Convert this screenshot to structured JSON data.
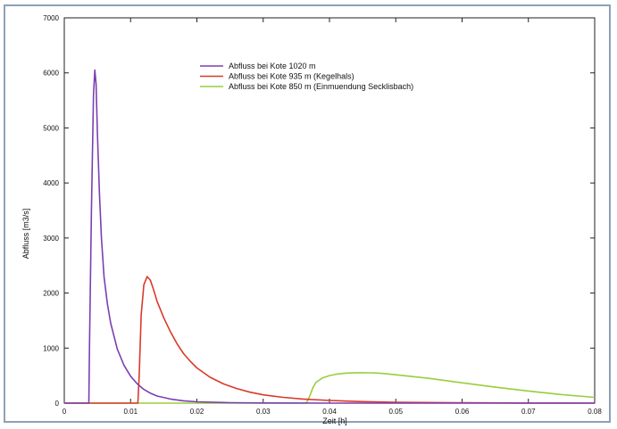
{
  "chart_data": {
    "type": "line",
    "title": "",
    "xlabel": "Zeit [h]",
    "ylabel": "Abfluss [m3/s]",
    "xlim": [
      0,
      0.08
    ],
    "ylim": [
      0,
      7000
    ],
    "xticks": [
      "0",
      "0.01",
      "0.02",
      "0.03",
      "0.04",
      "0.05",
      "0.06",
      "0.07",
      "0.08"
    ],
    "xtick_values": [
      0,
      0.01,
      0.02,
      0.03,
      0.04,
      0.05,
      0.06,
      0.07,
      0.08
    ],
    "yticks": [
      "0",
      "1000",
      "2000",
      "3000",
      "4000",
      "5000",
      "6000",
      "7000"
    ],
    "ytick_values": [
      0,
      1000,
      2000,
      3000,
      4000,
      5000,
      6000,
      7000
    ],
    "grid": false,
    "legend_position": "top-center",
    "series": [
      {
        "name": "Abfluss bei Kote 1020 m",
        "color": "#7b3fb0",
        "x": [
          0.0,
          0.0037,
          0.0038,
          0.0041,
          0.0044,
          0.0046,
          0.0048,
          0.005,
          0.0053,
          0.0056,
          0.006,
          0.0065,
          0.007,
          0.008,
          0.009,
          0.01,
          0.011,
          0.012,
          0.013,
          0.014,
          0.016,
          0.018,
          0.02,
          0.025,
          0.03,
          0.04,
          0.08
        ],
        "y": [
          0,
          0,
          1000,
          3500,
          5600,
          6050,
          5800,
          4900,
          3800,
          3000,
          2300,
          1800,
          1450,
          980,
          690,
          490,
          350,
          250,
          180,
          130,
          75,
          42,
          25,
          8,
          3,
          0,
          0
        ]
      },
      {
        "name": "Abfluss bei Kote 935 m (Kegelhals)",
        "color": "#d93a2b",
        "x": [
          0.0,
          0.0111,
          0.0113,
          0.0116,
          0.012,
          0.0125,
          0.013,
          0.0135,
          0.014,
          0.015,
          0.016,
          0.017,
          0.018,
          0.019,
          0.02,
          0.022,
          0.024,
          0.026,
          0.028,
          0.03,
          0.033,
          0.036,
          0.04,
          0.045,
          0.05,
          0.06,
          0.07,
          0.08
        ],
        "y": [
          0,
          0,
          500,
          1600,
          2150,
          2300,
          2230,
          2050,
          1850,
          1550,
          1300,
          1080,
          900,
          760,
          640,
          470,
          350,
          265,
          200,
          150,
          105,
          75,
          48,
          28,
          16,
          6,
          2,
          0
        ]
      },
      {
        "name": "Abfluss bei Kote 850 m (Einmuendung Secklisbach)",
        "color": "#9acd3c",
        "x": [
          0.0,
          0.0365,
          0.037,
          0.0375,
          0.038,
          0.039,
          0.04,
          0.041,
          0.042,
          0.043,
          0.044,
          0.045,
          0.046,
          0.047,
          0.048,
          0.05,
          0.055,
          0.06,
          0.065,
          0.07,
          0.075,
          0.08
        ],
        "y": [
          0,
          0,
          120,
          280,
          380,
          460,
          500,
          525,
          540,
          548,
          552,
          553,
          551,
          547,
          540,
          515,
          450,
          370,
          290,
          220,
          155,
          105
        ]
      }
    ]
  }
}
